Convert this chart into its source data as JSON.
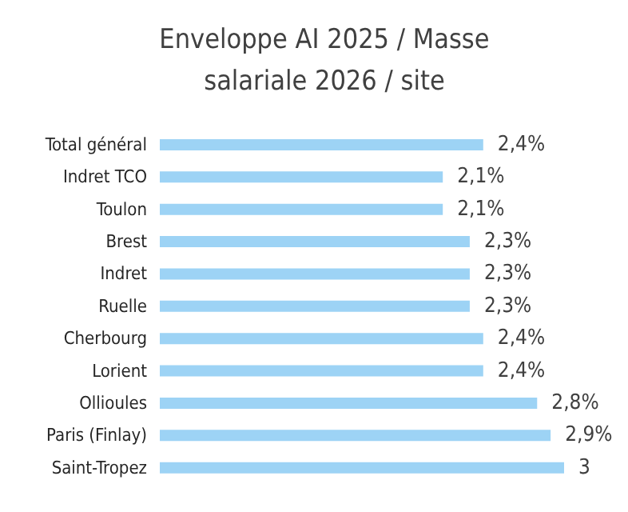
{
  "chart_data": {
    "type": "bar",
    "orientation": "horizontal",
    "title": "Enveloppe AI 2025 / Masse salariale 2026 / site",
    "categories": [
      "Total général",
      "Indret TCO",
      "Toulon",
      "Brest",
      "Indret",
      "Ruelle",
      "Cherbourg",
      "Lorient",
      "Ollioules",
      "Paris (Finlay)",
      "Saint-Tropez"
    ],
    "values": [
      2.4,
      2.1,
      2.1,
      2.3,
      2.3,
      2.3,
      2.4,
      2.4,
      2.8,
      2.9,
      3
    ],
    "value_labels": [
      "2,4%",
      "2,1%",
      "2,1%",
      "2,3%",
      "2,3%",
      "2,3%",
      "2,4%",
      "2,4%",
      "2,8%",
      "2,9%",
      "3"
    ],
    "color": "#9dd3f5",
    "tick_labels": "y"
  }
}
